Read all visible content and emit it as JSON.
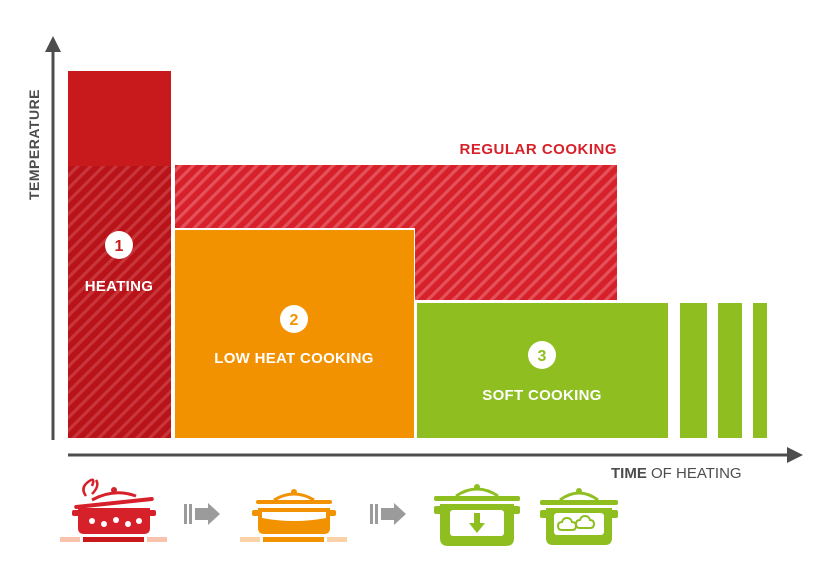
{
  "axes": {
    "y_label": "TEMPERATURE",
    "x_label_bold": "TIME",
    "x_label_rest": " OF HEATING"
  },
  "phases": [
    {
      "number": "1",
      "label": "HEATING",
      "color": "#c8191c"
    },
    {
      "number": "2",
      "label": "LOW HEAT COOKING",
      "color": "#f39200"
    },
    {
      "number": "3",
      "label": "SOFT COOKING",
      "color": "#8ebe20"
    }
  ],
  "regular": {
    "label": "REGULAR COOKING",
    "color": "#d7212a"
  },
  "icons": [
    "boiling-pot-icon",
    "arrow-right-icon",
    "low-heat-pot-icon",
    "arrow-right-icon",
    "pot-heat-down-icon",
    "pot-steam-icon"
  ],
  "colors": {
    "axis": "#4d4d4d",
    "red_dark": "#c8191c",
    "red_hatch": "#d7212a",
    "orange": "#f39200",
    "green": "#8ebe20",
    "arrow_gray": "#9b9b9b",
    "pink_light": "#f7c3ad",
    "orange_light": "#fbd2a8"
  }
}
